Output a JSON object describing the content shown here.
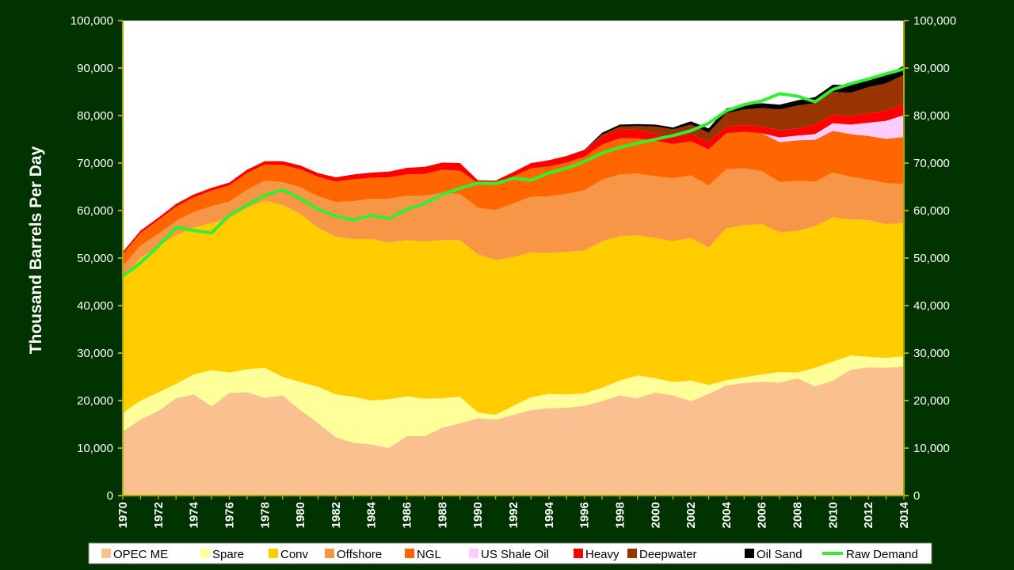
{
  "chart_data": {
    "type": "area",
    "ylabel": "Thousand Barrels Per Day",
    "ylim": [
      0,
      100000
    ],
    "grid": false,
    "legend_position": "bottom",
    "x": [
      1970,
      1971,
      1972,
      1973,
      1974,
      1975,
      1976,
      1977,
      1978,
      1979,
      1980,
      1981,
      1982,
      1983,
      1984,
      1985,
      1986,
      1987,
      1988,
      1989,
      1990,
      1991,
      1992,
      1993,
      1994,
      1995,
      1996,
      1997,
      1998,
      1999,
      2000,
      2001,
      2002,
      2003,
      2004,
      2005,
      2006,
      2007,
      2008,
      2009,
      2010,
      2011,
      2012,
      2013,
      2014
    ],
    "x_tick_labels": [
      "1970",
      "1972",
      "1974",
      "1976",
      "1978",
      "1980",
      "1982",
      "1984",
      "1986",
      "1988",
      "1990",
      "1992",
      "1994",
      "1996",
      "1998",
      "2000",
      "2002",
      "2004",
      "2006",
      "2008",
      "2010",
      "2012",
      "2014"
    ],
    "y_tick_labels_left": [
      "0",
      "10,000",
      "20,000",
      "30,000",
      "40,000",
      "50,000",
      "60,000",
      "70,000",
      "80,000",
      "90,000",
      "100,000"
    ],
    "y_tick_labels_right": [
      "0",
      "10,000",
      "20,000",
      "30,000",
      "40,000",
      "50,000",
      "60,000",
      "70,000",
      "80,000",
      "90,000",
      "100,000"
    ],
    "stack_order": "bottom-to-top",
    "series": [
      {
        "name": "OPEC ME",
        "color": "#fac090",
        "values": [
          13500,
          16000,
          17800,
          20500,
          21300,
          18800,
          21600,
          21800,
          20600,
          21100,
          18000,
          15300,
          12300,
          11100,
          10800,
          10000,
          12500,
          12500,
          14300,
          15200,
          16300,
          16000,
          17000,
          18000,
          18400,
          18500,
          18900,
          19900,
          21100,
          20500,
          21700,
          21100,
          19900,
          21400,
          23200,
          23700,
          24000,
          23800,
          24700,
          23000,
          24200,
          26500,
          27000,
          26900,
          27200
        ]
      },
      {
        "name": "Spare",
        "color": "#ffff99",
        "values": [
          3900,
          4000,
          3900,
          3000,
          4200,
          7600,
          4300,
          4800,
          6300,
          3900,
          5900,
          7600,
          9000,
          9700,
          9200,
          10300,
          8400,
          7900,
          6200,
          5600,
          1200,
          1000,
          1900,
          2700,
          3000,
          2800,
          2600,
          2800,
          3100,
          4800,
          3000,
          2800,
          4300,
          1900,
          1100,
          1200,
          1500,
          2200,
          1200,
          3900,
          4000,
          3000,
          2200,
          2100,
          2100
        ]
      },
      {
        "name": "Conv",
        "color": "#ffcc00",
        "values": [
          28600,
          30000,
          30800,
          31300,
          30900,
          31000,
          32500,
          34000,
          35200,
          36200,
          35400,
          33500,
          33200,
          33200,
          34000,
          33000,
          32900,
          33100,
          33300,
          33000,
          33300,
          32600,
          31300,
          30500,
          29700,
          30000,
          30100,
          30800,
          30400,
          29500,
          29500,
          29700,
          30000,
          28900,
          32000,
          32000,
          31700,
          29400,
          29800,
          29800,
          30400,
          28600,
          28800,
          28100,
          28100
        ]
      },
      {
        "name": "Offshore",
        "color": "#f79646",
        "values": [
          2300,
          2600,
          2600,
          3000,
          3300,
          3500,
          3500,
          3800,
          4200,
          4800,
          5600,
          6600,
          7300,
          8000,
          8500,
          9200,
          9300,
          9600,
          10000,
          9700,
          9800,
          10500,
          11300,
          11700,
          11900,
          12200,
          12700,
          13000,
          13000,
          13000,
          13000,
          13200,
          13200,
          13100,
          12400,
          12000,
          11100,
          10600,
          10600,
          9400,
          9400,
          9000,
          8500,
          8700,
          8200
        ]
      },
      {
        "name": "NGL",
        "color": "#ff6600",
        "values": [
          2500,
          2700,
          2900,
          3000,
          3100,
          3300,
          3400,
          3500,
          3400,
          3600,
          3800,
          4100,
          4300,
          4600,
          4400,
          4500,
          4500,
          4600,
          4800,
          4900,
          5200,
          5500,
          5700,
          6000,
          6300,
          6600,
          7000,
          7400,
          7600,
          7400,
          7500,
          7200,
          7200,
          7600,
          7600,
          7700,
          8000,
          8400,
          8500,
          8800,
          8800,
          9000,
          9200,
          9300,
          9900
        ]
      },
      {
        "name": "US Shale Oil",
        "color": "#ffccff",
        "values": [
          0,
          0,
          0,
          0,
          0,
          0,
          0,
          0,
          0,
          0,
          0,
          0,
          0,
          0,
          0,
          0,
          0,
          0,
          0,
          0,
          0,
          0,
          0,
          0,
          0,
          0,
          0,
          0,
          0,
          0,
          0,
          0,
          0,
          0,
          0,
          0,
          0,
          1000,
          1000,
          1200,
          1600,
          2000,
          2800,
          3800,
          4600
        ]
      },
      {
        "name": "Heavy",
        "color": "#ff0000",
        "values": [
          500,
          500,
          500,
          600,
          600,
          600,
          600,
          700,
          700,
          800,
          800,
          800,
          900,
          1000,
          1100,
          1200,
          1400,
          1500,
          1500,
          1600,
          600,
          700,
          900,
          1100,
          1300,
          1400,
          1500,
          1700,
          1900,
          1800,
          1500,
          1500,
          1500,
          1500,
          1400,
          1400,
          1400,
          1500,
          1500,
          2000,
          1800,
          1900,
          2000,
          2100,
          2400
        ]
      },
      {
        "name": "Deepwater",
        "color": "#993300",
        "values": [
          0,
          0,
          0,
          0,
          0,
          0,
          0,
          0,
          0,
          0,
          0,
          0,
          0,
          0,
          0,
          0,
          0,
          0,
          0,
          0,
          0,
          0,
          0,
          0,
          0,
          0,
          0,
          400,
          600,
          800,
          1500,
          1600,
          2000,
          2000,
          2800,
          3300,
          3900,
          4400,
          4800,
          4500,
          4800,
          4800,
          5500,
          5800,
          6100
        ]
      },
      {
        "name": "Oil Sand",
        "color": "#000000",
        "values": [
          0,
          0,
          0,
          0,
          0,
          0,
          0,
          0,
          0,
          0,
          0,
          0,
          0,
          0,
          0,
          0,
          0,
          0,
          0,
          0,
          0,
          0,
          0,
          0,
          0,
          0,
          0,
          400,
          400,
          400,
          400,
          400,
          700,
          900,
          1000,
          1000,
          1000,
          1000,
          1100,
          1300,
          1500,
          1600,
          1700,
          1700,
          1900
        ]
      }
    ],
    "line_series": [
      {
        "name": "Raw Demand",
        "color": "#33ee33",
        "values": [
          46200,
          49000,
          52500,
          56500,
          55800,
          55300,
          59000,
          61200,
          63200,
          64400,
          62500,
          60300,
          58800,
          58000,
          59000,
          58300,
          60300,
          61500,
          63400,
          64700,
          65800,
          65700,
          66800,
          66400,
          67900,
          68900,
          70300,
          72100,
          73300,
          74200,
          75000,
          75800,
          76800,
          78400,
          81000,
          82300,
          83100,
          84600,
          84100,
          82900,
          85500,
          86700,
          87700,
          88800,
          89800
        ]
      }
    ]
  }
}
